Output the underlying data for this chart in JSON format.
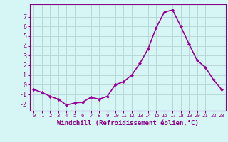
{
  "x": [
    0,
    1,
    2,
    3,
    4,
    5,
    6,
    7,
    8,
    9,
    10,
    11,
    12,
    13,
    14,
    15,
    16,
    17,
    18,
    19,
    20,
    21,
    22,
    23
  ],
  "y": [
    -0.5,
    -0.8,
    -1.2,
    -1.5,
    -2.1,
    -1.9,
    -1.8,
    -1.3,
    -1.5,
    -1.2,
    0.0,
    0.3,
    1.0,
    2.2,
    3.7,
    5.9,
    7.5,
    7.7,
    6.0,
    4.2,
    2.5,
    1.8,
    0.5,
    -0.5
  ],
  "line_color": "#990099",
  "marker": "D",
  "marker_size": 2.2,
  "bg_color": "#d6f5f5",
  "grid_color": "#b8d8d8",
  "axis_color": "#880088",
  "tick_color": "#880088",
  "xlabel": "Windchill (Refroidissement éolien,°C)",
  "xlabel_fontsize": 6.5,
  "yticks": [
    -2,
    -1,
    0,
    1,
    2,
    3,
    4,
    5,
    6,
    7
  ],
  "ylim": [
    -2.7,
    8.3
  ],
  "xlim": [
    -0.5,
    23.5
  ],
  "xtick_labels": [
    "0",
    "1",
    "2",
    "3",
    "4",
    "5",
    "6",
    "7",
    "8",
    "9",
    "10",
    "11",
    "12",
    "13",
    "14",
    "15",
    "16",
    "17",
    "18",
    "19",
    "20",
    "21",
    "22",
    "23"
  ],
  "line_width": 1.2,
  "ytick_fontsize": 6.0,
  "xtick_fontsize": 5.2
}
